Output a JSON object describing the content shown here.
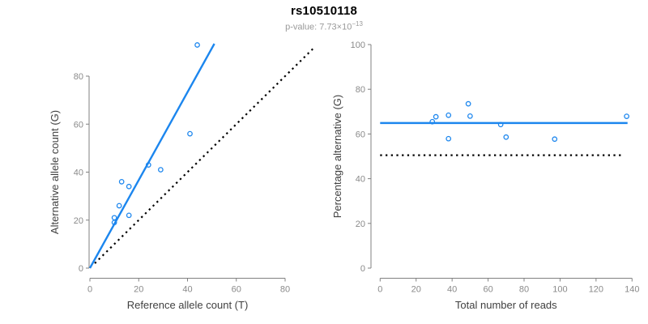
{
  "header": {
    "title": "rs10510118",
    "p_value_base": "p-value: 7.73×10",
    "p_value_exponent": "−13"
  },
  "colors": {
    "accent_blue": "#1C86EE",
    "line_black": "#000000",
    "axis_gray": "#808080",
    "tick_label_gray": "#8A8A8A",
    "axis_title_gray": "#404040",
    "subtitle_gray": "#999999",
    "background": "#FFFFFF"
  },
  "chart_data": [
    {
      "type": "scatter",
      "xlabel": "Reference allele count (T)",
      "ylabel": "Alternative allele count (G)",
      "xlim": [
        0,
        93
      ],
      "ylim": [
        0,
        95
      ],
      "xticks": [
        0,
        20,
        40,
        60,
        80
      ],
      "yticks": [
        0,
        20,
        40,
        60,
        80
      ],
      "grid": false,
      "legend": "none",
      "points": [
        [
          10,
          19
        ],
        [
          10,
          21
        ],
        [
          12,
          26
        ],
        [
          13,
          36
        ],
        [
          16,
          22
        ],
        [
          16,
          34
        ],
        [
          24,
          43
        ],
        [
          29,
          41
        ],
        [
          41,
          56
        ],
        [
          44,
          93
        ]
      ],
      "lines": [
        {
          "name": "fit-line",
          "color": "accent_blue",
          "style": "solid",
          "x1": 0,
          "y1": 0,
          "x2": 51,
          "y2": 93.5
        },
        {
          "name": "identity-line",
          "color": "line_black",
          "style": "dotted",
          "x1": 2,
          "y1": 2,
          "x2": 92,
          "y2": 92
        }
      ]
    },
    {
      "type": "scatter",
      "xlabel": "Total number of reads",
      "ylabel": "Percentage alternative (G)",
      "xlim": [
        0,
        140
      ],
      "ylim": [
        0,
        100
      ],
      "xticks": [
        0,
        20,
        40,
        60,
        80,
        100,
        120,
        140
      ],
      "yticks": [
        0,
        20,
        40,
        60,
        80,
        100
      ],
      "grid": false,
      "legend": "none",
      "points": [
        [
          29,
          65.5
        ],
        [
          31,
          67.7
        ],
        [
          38,
          57.9
        ],
        [
          38,
          68.4
        ],
        [
          49,
          73.5
        ],
        [
          50,
          68
        ],
        [
          67,
          64.2
        ],
        [
          70,
          58.6
        ],
        [
          97,
          57.7
        ],
        [
          137,
          67.9
        ]
      ],
      "lines": [
        {
          "name": "mean-line",
          "color": "accent_blue",
          "style": "solid",
          "x1": 0,
          "y1": 64.9,
          "x2": 137.5,
          "y2": 64.9
        },
        {
          "name": "expected-50-line",
          "color": "line_black",
          "style": "dotted",
          "x1": 0,
          "y1": 50.5,
          "x2": 134,
          "y2": 50.5
        }
      ]
    }
  ]
}
